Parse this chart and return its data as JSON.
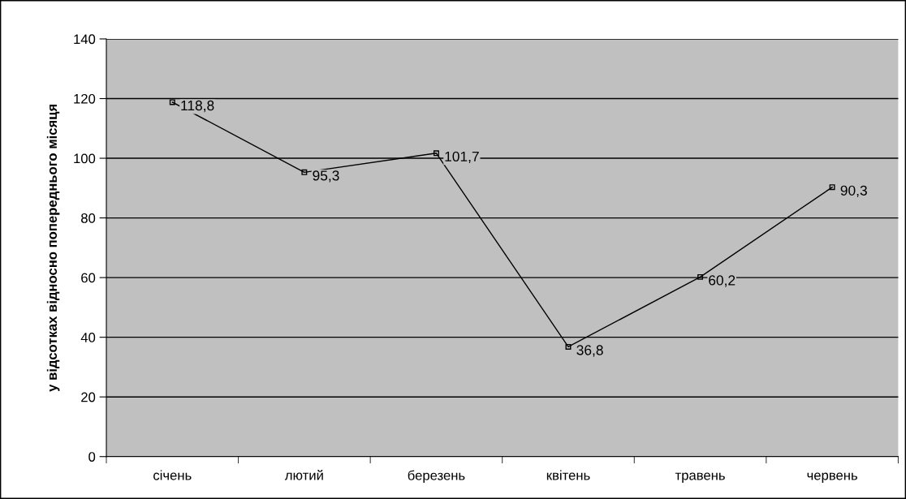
{
  "chart_data": {
    "type": "line",
    "ylabel": "у відсотках відносно попереднього місяця",
    "categories": [
      "січень",
      "лютий",
      "березень",
      "квітень",
      "травень",
      "червень"
    ],
    "series": [
      {
        "color": "#000000",
        "values": [
          118.8,
          95.3,
          101.7,
          36.8,
          60.2,
          90.3
        ],
        "value_labels": [
          "118,8",
          "95,3",
          "101,7",
          "36,8",
          "60,2",
          "90,3"
        ]
      }
    ],
    "ylim": [
      0,
      140
    ],
    "yticks": [
      0,
      20,
      40,
      60,
      80,
      100,
      120,
      140
    ],
    "grid": "y",
    "marker": "square",
    "line_style": "solid"
  }
}
